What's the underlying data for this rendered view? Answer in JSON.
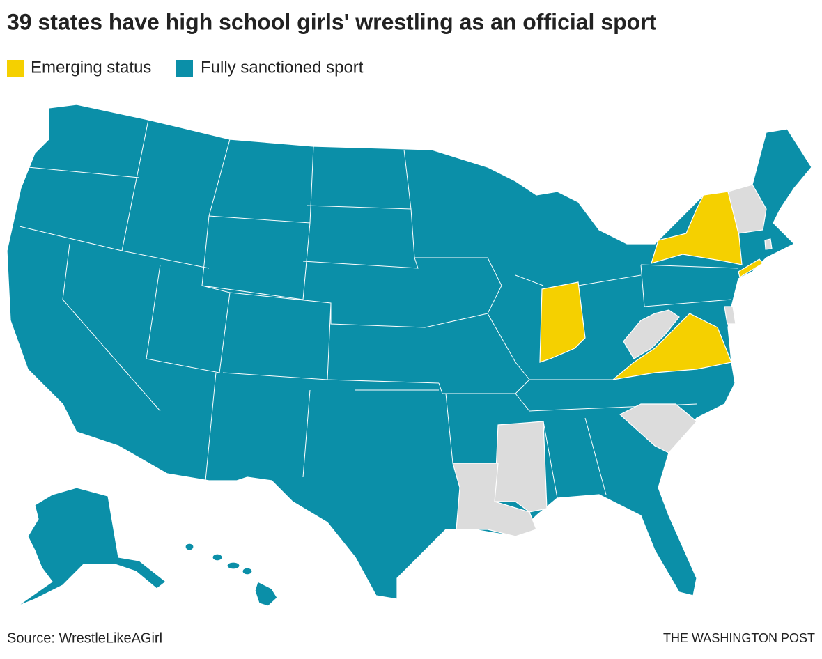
{
  "title": "39 states have high school girls' wrestling as an official sport",
  "legend": [
    {
      "label": "Emerging status",
      "color": "#f5d000"
    },
    {
      "label": "Fully sanctioned sport",
      "color": "#0b8fa8"
    }
  ],
  "source": "Source: WrestleLikeAGirl",
  "credit": "THE WASHINGTON POST"
}
